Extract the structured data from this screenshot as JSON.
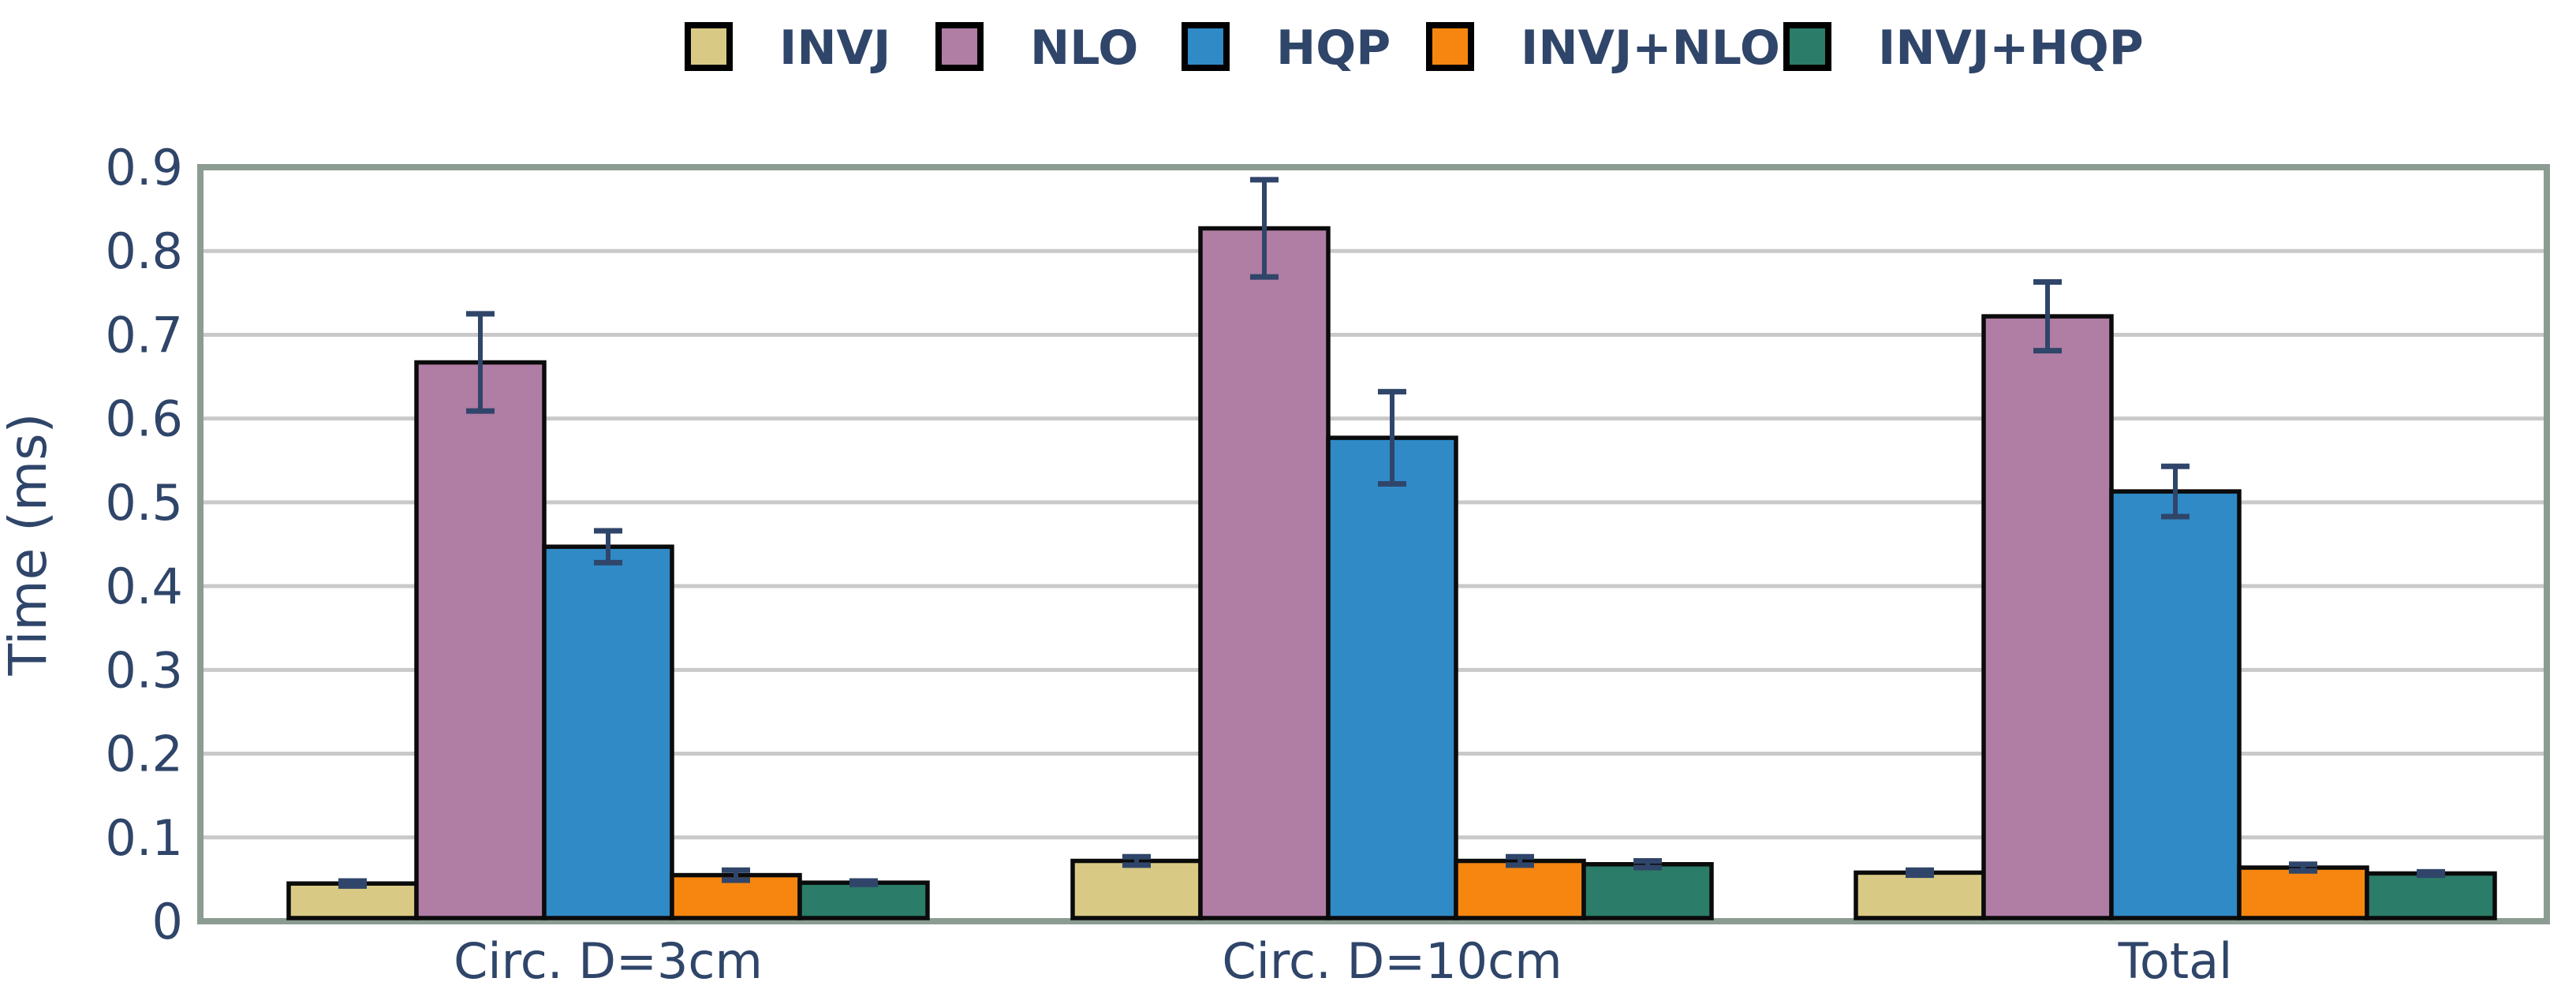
{
  "chart_data": {
    "type": "bar",
    "title": "",
    "xlabel": "",
    "ylabel": "Time (ms)",
    "categories": [
      "Circ. D=3cm",
      "Circ. D=10cm",
      "Total"
    ],
    "series": [
      {
        "name": "INVJ",
        "color": "#d8c985",
        "values": [
          0.045,
          0.072,
          0.058
        ],
        "errors": [
          0.003,
          0.005,
          0.003
        ]
      },
      {
        "name": "NLO",
        "color": "#b07da5",
        "values": [
          0.667,
          0.827,
          0.722
        ],
        "errors": [
          0.058,
          0.058,
          0.041
        ]
      },
      {
        "name": "HQP",
        "color": "#2f8ac6",
        "values": [
          0.447,
          0.577,
          0.513
        ],
        "errors": [
          0.019,
          0.055,
          0.03
        ]
      },
      {
        "name": "INVJ+NLO",
        "color": "#f6860f",
        "values": [
          0.055,
          0.072,
          0.064
        ],
        "errors": [
          0.006,
          0.005,
          0.004
        ]
      },
      {
        "name": "INVJ+HQP",
        "color": "#2b7c68",
        "values": [
          0.046,
          0.068,
          0.057
        ],
        "errors": [
          0.002,
          0.004,
          0.002
        ]
      }
    ],
    "ylim": [
      0,
      0.9
    ],
    "yticks": [
      "0",
      "0.1",
      "0.2",
      "0.3",
      "0.4",
      "0.5",
      "0.6",
      "0.7",
      "0.8",
      "0.9"
    ],
    "grid": true,
    "legend_position": "top",
    "colors": {
      "text": "#2f4569",
      "errorbar": "#30456a",
      "bar_edge": "#0b0b0b",
      "spine": "#8c9c92",
      "gridline": "#c9c9c9",
      "background": "#ffffff",
      "legend_swatch_border": "#000000"
    }
  }
}
